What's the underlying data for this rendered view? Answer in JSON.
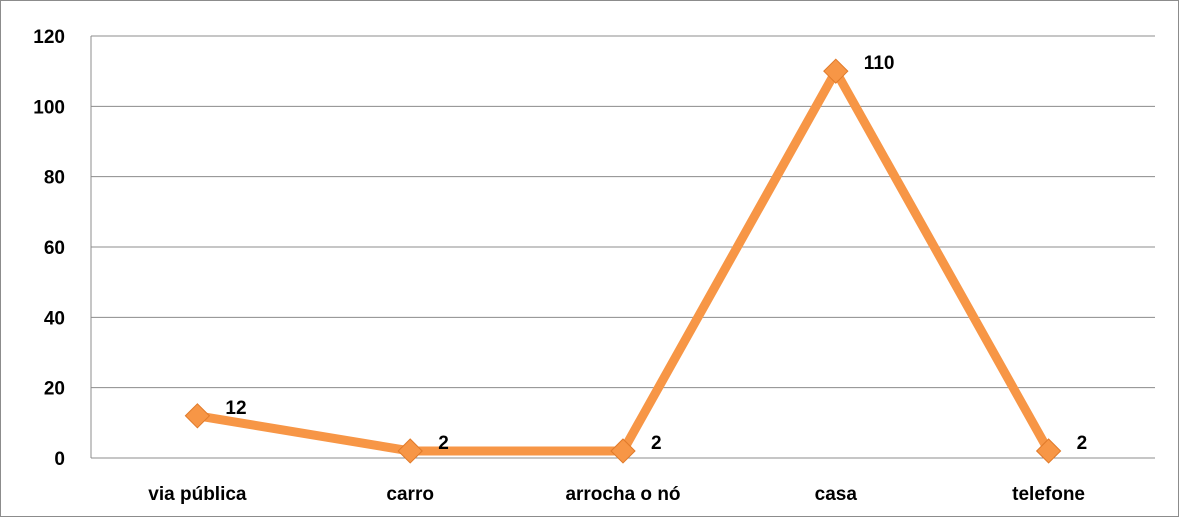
{
  "chart_data": {
    "type": "line",
    "categories": [
      "via pública",
      "carro",
      "arrocha o nó",
      "casa",
      "telefone"
    ],
    "series": [
      {
        "values": [
          12,
          2,
          2,
          110,
          2
        ]
      }
    ],
    "data_labels": [
      "12",
      "2",
      "2",
      "110",
      "2"
    ],
    "y_ticks": [
      "0",
      "20",
      "40",
      "60",
      "80",
      "100",
      "120"
    ],
    "ylim": [
      0,
      120
    ],
    "grid": true,
    "legend": "none",
    "colors": {
      "line": "#F79646",
      "marker": "#F79646",
      "grid": "#8c8c8c",
      "axis": "#8c8c8c"
    }
  }
}
